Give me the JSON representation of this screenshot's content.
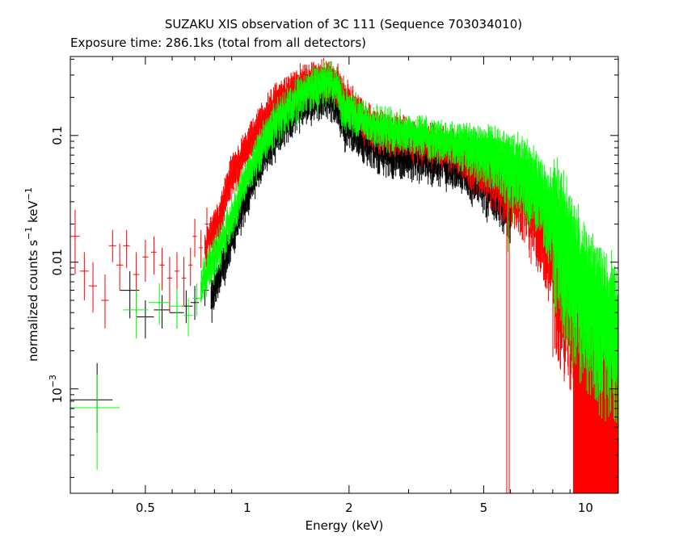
{
  "chart_data": {
    "type": "scatter",
    "title": "SUZAKU XIS observation of 3C 111 (Sequence 703034010)",
    "subtitle": "Exposure time: 286.1ks (total from all detectors)",
    "xlabel": "Energy (keV)",
    "ylabel": {
      "main": "normalized counts s",
      "exp1": "−1",
      "mid": " keV",
      "exp2": "−1"
    },
    "x_scale": "log",
    "y_scale": "log",
    "xlim": [
      0.3,
      12.5
    ],
    "ylim": [
      0.00015,
      0.42
    ],
    "x_ticks": [
      {
        "value": 0.5,
        "label": "0.5"
      },
      {
        "value": 1,
        "label": "1"
      },
      {
        "value": 2,
        "label": "2"
      },
      {
        "value": 5,
        "label": "5"
      },
      {
        "value": 10,
        "label": "10"
      }
    ],
    "y_ticks": [
      {
        "value": 0.1,
        "label": "0.1"
      },
      {
        "value": 0.01,
        "label": "0.01"
      },
      {
        "value": 0.001,
        "label": "10",
        "exp": "−3"
      }
    ],
    "grid": false,
    "legend": "none",
    "series": [
      {
        "color": "#000000",
        "points": [
          {
            "x": 0.36,
            "y": 0.00082,
            "xlo": 0.3,
            "xhi": 0.4,
            "ylo": 0.00045,
            "yhi": 0.0016
          },
          {
            "x": 0.45,
            "y": 0.006,
            "xlo": 0.42,
            "xhi": 0.48,
            "ylo": 0.0036,
            "yhi": 0.0085
          },
          {
            "x": 0.5,
            "y": 0.0037,
            "xlo": 0.47,
            "xhi": 0.53,
            "ylo": 0.0025,
            "yhi": 0.005
          },
          {
            "x": 0.56,
            "y": 0.0042,
            "xlo": 0.53,
            "xhi": 0.59,
            "ylo": 0.003,
            "yhi": 0.0055
          },
          {
            "x": 0.62,
            "y": 0.004,
            "xlo": 0.59,
            "xhi": 0.65,
            "ylo": 0.003,
            "yhi": 0.0055
          },
          {
            "x": 0.66,
            "y": 0.0045,
            "xlo": 0.64,
            "xhi": 0.69,
            "ylo": 0.0033,
            "yhi": 0.006
          },
          {
            "x": 0.7,
            "y": 0.0048,
            "xlo": 0.68,
            "xhi": 0.72,
            "ylo": 0.0035,
            "yhi": 0.0065
          },
          {
            "x": 0.75,
            "y": 0.006,
            "xlo": 0.73,
            "xhi": 0.77,
            "ylo": 0.0045,
            "yhi": 0.008
          },
          {
            "x": 0.8,
            "y": 0.0085,
            "xlo": 0.78,
            "xhi": 0.82,
            "ylo": 0.0065,
            "yhi": 0.011
          }
        ],
        "envelope": [
          [
            0.78,
            0.005
          ],
          [
            0.85,
            0.01
          ],
          [
            0.9,
            0.016
          ],
          [
            1.0,
            0.035
          ],
          [
            1.1,
            0.065
          ],
          [
            1.2,
            0.1
          ],
          [
            1.35,
            0.15
          ],
          [
            1.5,
            0.19
          ],
          [
            1.65,
            0.21
          ],
          [
            1.75,
            0.22
          ],
          [
            1.85,
            0.17
          ],
          [
            1.95,
            0.12
          ],
          [
            2.1,
            0.11
          ],
          [
            2.3,
            0.085
          ],
          [
            2.6,
            0.075
          ],
          [
            3.0,
            0.07
          ],
          [
            3.5,
            0.065
          ],
          [
            4.0,
            0.06
          ],
          [
            4.5,
            0.052
          ],
          [
            5.0,
            0.046
          ],
          [
            5.5,
            0.04
          ],
          [
            5.8,
            0.036
          ],
          [
            6.05,
            0.032
          ]
        ]
      },
      {
        "color": "#ff0000",
        "points": [
          {
            "x": 0.31,
            "y": 0.016,
            "xlo": 0.3,
            "xhi": 0.32,
            "ylo": 0.008,
            "yhi": 0.026
          },
          {
            "x": 0.33,
            "y": 0.0085,
            "xlo": 0.32,
            "xhi": 0.34,
            "ylo": 0.005,
            "yhi": 0.012
          },
          {
            "x": 0.35,
            "y": 0.0065,
            "xlo": 0.34,
            "xhi": 0.36,
            "ylo": 0.004,
            "yhi": 0.01
          },
          {
            "x": 0.38,
            "y": 0.005,
            "xlo": 0.37,
            "xhi": 0.39,
            "ylo": 0.003,
            "yhi": 0.008
          },
          {
            "x": 0.4,
            "y": 0.0135,
            "xlo": 0.39,
            "xhi": 0.41,
            "ylo": 0.01,
            "yhi": 0.018
          },
          {
            "x": 0.42,
            "y": 0.0095,
            "xlo": 0.41,
            "xhi": 0.43,
            "ylo": 0.006,
            "yhi": 0.014
          },
          {
            "x": 0.44,
            "y": 0.0135,
            "xlo": 0.43,
            "xhi": 0.45,
            "ylo": 0.009,
            "yhi": 0.018
          },
          {
            "x": 0.47,
            "y": 0.008,
            "xlo": 0.46,
            "xhi": 0.48,
            "ylo": 0.004,
            "yhi": 0.012
          },
          {
            "x": 0.5,
            "y": 0.011,
            "xlo": 0.49,
            "xhi": 0.51,
            "ylo": 0.007,
            "yhi": 0.015
          },
          {
            "x": 0.53,
            "y": 0.012,
            "xlo": 0.52,
            "xhi": 0.54,
            "ylo": 0.008,
            "yhi": 0.016
          },
          {
            "x": 0.56,
            "y": 0.0095,
            "xlo": 0.55,
            "xhi": 0.57,
            "ylo": 0.006,
            "yhi": 0.013
          },
          {
            "x": 0.59,
            "y": 0.0075,
            "xlo": 0.58,
            "xhi": 0.6,
            "ylo": 0.004,
            "yhi": 0.011
          },
          {
            "x": 0.62,
            "y": 0.0085,
            "xlo": 0.61,
            "xhi": 0.63,
            "ylo": 0.005,
            "yhi": 0.012
          },
          {
            "x": 0.65,
            "y": 0.0075,
            "xlo": 0.64,
            "xhi": 0.66,
            "ylo": 0.0045,
            "yhi": 0.011
          },
          {
            "x": 0.68,
            "y": 0.0095,
            "xlo": 0.67,
            "xhi": 0.69,
            "ylo": 0.0065,
            "yhi": 0.013
          },
          {
            "x": 0.7,
            "y": 0.016,
            "xlo": 0.69,
            "xhi": 0.71,
            "ylo": 0.011,
            "yhi": 0.022
          },
          {
            "x": 0.73,
            "y": 0.013,
            "xlo": 0.72,
            "xhi": 0.74,
            "ylo": 0.009,
            "yhi": 0.018
          },
          {
            "x": 0.76,
            "y": 0.02,
            "xlo": 0.75,
            "xhi": 0.77,
            "ylo": 0.014,
            "yhi": 0.027
          }
        ],
        "envelope": [
          [
            0.75,
            0.013
          ],
          [
            0.8,
            0.019
          ],
          [
            0.85,
            0.03
          ],
          [
            0.9,
            0.05
          ],
          [
            1.0,
            0.085
          ],
          [
            1.1,
            0.13
          ],
          [
            1.2,
            0.18
          ],
          [
            1.35,
            0.24
          ],
          [
            1.5,
            0.27
          ],
          [
            1.65,
            0.29
          ],
          [
            1.75,
            0.3
          ],
          [
            1.85,
            0.27
          ],
          [
            1.95,
            0.2
          ],
          [
            2.1,
            0.16
          ],
          [
            2.3,
            0.125
          ],
          [
            2.6,
            0.11
          ],
          [
            3.0,
            0.1
          ],
          [
            3.5,
            0.09
          ],
          [
            4.0,
            0.08
          ],
          [
            4.5,
            0.07
          ],
          [
            5.0,
            0.06
          ],
          [
            5.5,
            0.05
          ],
          [
            6.0,
            0.043
          ],
          [
            6.5,
            0.034
          ],
          [
            7.0,
            0.026
          ],
          [
            7.5,
            0.019
          ],
          [
            8.0,
            0.013
          ],
          [
            8.5,
            0.009
          ],
          [
            9.0,
            0.0055
          ],
          [
            9.5,
            0.0035
          ],
          [
            10.0,
            0.0025
          ],
          [
            11.0,
            0.0018
          ],
          [
            12.0,
            0.0015
          ],
          [
            12.5,
            0.0015
          ]
        ]
      },
      {
        "color": "#00ff00",
        "points": [
          {
            "x": 0.36,
            "y": 0.00071,
            "xlo": 0.3,
            "xhi": 0.42,
            "ylo": 0.00023,
            "yhi": 0.0013
          },
          {
            "x": 0.47,
            "y": 0.0042,
            "xlo": 0.43,
            "xhi": 0.51,
            "ylo": 0.0025,
            "yhi": 0.006
          },
          {
            "x": 0.55,
            "y": 0.0048,
            "xlo": 0.51,
            "xhi": 0.59,
            "ylo": 0.0032,
            "yhi": 0.0068
          },
          {
            "x": 0.62,
            "y": 0.0045,
            "xlo": 0.59,
            "xhi": 0.65,
            "ylo": 0.003,
            "yhi": 0.0062
          },
          {
            "x": 0.67,
            "y": 0.0038,
            "xlo": 0.65,
            "xhi": 0.69,
            "ylo": 0.0026,
            "yhi": 0.0052
          },
          {
            "x": 0.71,
            "y": 0.0052,
            "xlo": 0.69,
            "xhi": 0.73,
            "ylo": 0.0038,
            "yhi": 0.0068
          },
          {
            "x": 0.75,
            "y": 0.0085,
            "xlo": 0.73,
            "xhi": 0.77,
            "ylo": 0.006,
            "yhi": 0.011
          }
        ],
        "envelope": [
          [
            0.73,
            0.007
          ],
          [
            0.78,
            0.01
          ],
          [
            0.85,
            0.016
          ],
          [
            0.9,
            0.025
          ],
          [
            1.0,
            0.05
          ],
          [
            1.1,
            0.085
          ],
          [
            1.2,
            0.13
          ],
          [
            1.35,
            0.19
          ],
          [
            1.5,
            0.23
          ],
          [
            1.65,
            0.26
          ],
          [
            1.75,
            0.29
          ],
          [
            1.85,
            0.24
          ],
          [
            1.95,
            0.17
          ],
          [
            2.1,
            0.15
          ],
          [
            2.3,
            0.13
          ],
          [
            2.6,
            0.12
          ],
          [
            3.0,
            0.11
          ],
          [
            3.5,
            0.1
          ],
          [
            4.0,
            0.095
          ],
          [
            4.5,
            0.088
          ],
          [
            5.0,
            0.08
          ],
          [
            5.5,
            0.072
          ],
          [
            6.0,
            0.062
          ],
          [
            6.5,
            0.055
          ],
          [
            7.0,
            0.045
          ],
          [
            7.5,
            0.035
          ],
          [
            8.0,
            0.025
          ],
          [
            8.5,
            0.017
          ],
          [
            9.0,
            0.012
          ],
          [
            9.5,
            0.0085
          ],
          [
            10.0,
            0.0065
          ],
          [
            11.0,
            0.0045
          ],
          [
            12.0,
            0.0035
          ],
          [
            12.5,
            0.003
          ]
        ]
      }
    ]
  }
}
